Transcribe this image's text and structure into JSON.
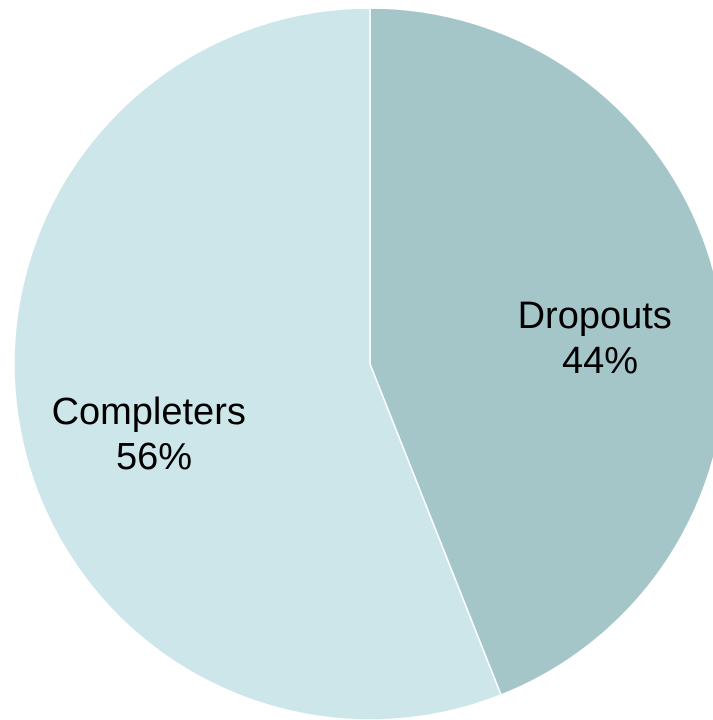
{
  "chart_data": {
    "type": "pie",
    "categories": [
      "Dropouts",
      "Completers"
    ],
    "values": [
      44,
      56
    ],
    "labels": [
      {
        "name": "Dropouts",
        "percent": "44%"
      },
      {
        "name": "Completers",
        "percent": "56%"
      }
    ],
    "colors": [
      "#a5c6c9",
      "#cde6ea"
    ],
    "start_angle": "12 o'clock",
    "direction": "clockwise",
    "legend": "none"
  }
}
